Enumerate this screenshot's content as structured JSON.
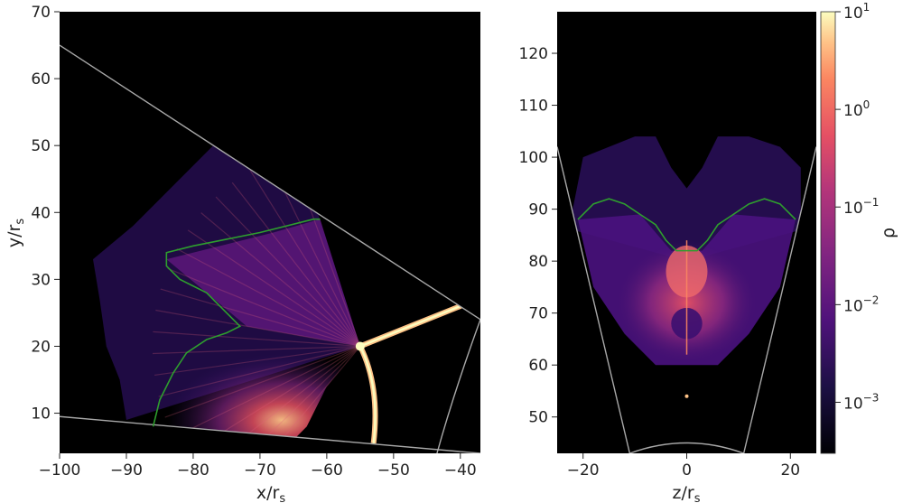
{
  "chart_data": [
    {
      "type": "heatmap",
      "panel": "left",
      "xlabel": "x/r",
      "xlabel_sub": "s",
      "ylabel": "y/r",
      "ylabel_sub": "s",
      "xlim": [
        -100,
        -37
      ],
      "ylim": [
        4,
        70
      ],
      "xticks": [
        -100,
        -90,
        -80,
        -70,
        -60,
        -50,
        -40
      ],
      "yticks": [
        10,
        20,
        30,
        40,
        50,
        60,
        70
      ],
      "xtick_labels": [
        "−100",
        "−90",
        "−80",
        "−70",
        "−60",
        "−50",
        "−40"
      ],
      "ytick_labels": [
        "10",
        "20",
        "30",
        "40",
        "50",
        "60",
        "70"
      ],
      "wedge_upper": [
        [
          -100,
          65
        ],
        [
          -37,
          24
        ]
      ],
      "wedge_lower": [
        [
          -100,
          9.5
        ],
        [
          -37,
          4
        ]
      ],
      "shock_center": [
        -55,
        20
      ],
      "contour": [
        [
          -86,
          8
        ],
        [
          -85,
          12
        ],
        [
          -83,
          16
        ],
        [
          -81,
          19
        ],
        [
          -78,
          21
        ],
        [
          -75,
          22
        ],
        [
          -73,
          23
        ],
        [
          -75,
          25
        ],
        [
          -78,
          28
        ],
        [
          -82,
          30
        ],
        [
          -84,
          32
        ],
        [
          -84,
          34
        ],
        [
          -80,
          35
        ],
        [
          -75,
          36
        ],
        [
          -70,
          37
        ],
        [
          -66,
          38
        ],
        [
          -62,
          39
        ],
        [
          -61,
          39
        ]
      ]
    },
    {
      "type": "heatmap",
      "panel": "right",
      "xlabel": "z/r",
      "xlabel_sub": "s",
      "xlim": [
        -25,
        25
      ],
      "ylim": [
        43,
        128
      ],
      "xticks": [
        -20,
        0,
        20
      ],
      "yticks": [
        50,
        60,
        70,
        80,
        90,
        100,
        110,
        120
      ],
      "xtick_labels": [
        "−20",
        "0",
        "20"
      ],
      "ytick_labels": [
        "50",
        "60",
        "70",
        "80",
        "90",
        "100",
        "110",
        "120"
      ],
      "cone_left": [
        [
          -25,
          102
        ],
        [
          -11,
          43
        ]
      ],
      "cone_right": [
        [
          25,
          102
        ],
        [
          11,
          43
        ]
      ],
      "contour": [
        [
          -21,
          88
        ],
        [
          -18,
          91
        ],
        [
          -15,
          92
        ],
        [
          -12,
          91
        ],
        [
          -9,
          89
        ],
        [
          -6,
          87
        ],
        [
          -4,
          84
        ],
        [
          -2,
          82
        ],
        [
          2,
          82
        ],
        [
          4,
          84
        ],
        [
          6,
          87
        ],
        [
          9,
          89
        ],
        [
          12,
          91
        ],
        [
          15,
          92
        ],
        [
          18,
          91
        ],
        [
          21,
          88
        ]
      ]
    }
  ],
  "colorbar": {
    "label": "ρ",
    "scale": "log",
    "colormap": "magma",
    "range": [
      0.0003,
      10
    ],
    "ticks": [
      {
        "base": "10",
        "exp": "1",
        "value": 10
      },
      {
        "base": "10",
        "exp": "0",
        "value": 1
      },
      {
        "base": "10",
        "exp": "−1",
        "value": 0.1
      },
      {
        "base": "10",
        "exp": "−2",
        "value": 0.01
      },
      {
        "base": "10",
        "exp": "−3",
        "value": 0.001
      }
    ]
  },
  "colors": {
    "contour": "#2e9e2e",
    "wedge": "#a8a8a8",
    "background": "#000000"
  }
}
